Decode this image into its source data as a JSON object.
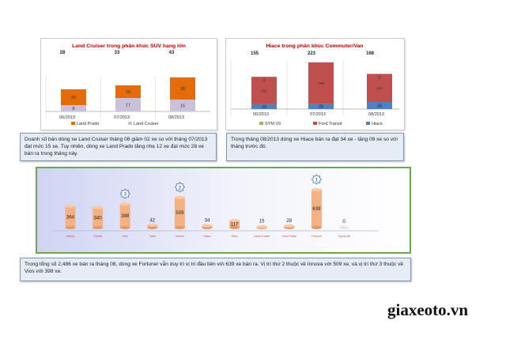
{
  "notes": {
    "suv": "Doanh số bán dòng xe Land Cruiser tháng 08 giảm 02 xe so với tháng 07/2013 đạt mức 15 xe. Tuy nhiên, dòng xe Land Prado tăng nhẹ 12 xe đạt mức 28 xe bán ra trong tháng này.",
    "hiace": "Trong tháng 08/2013 dòng xe Hiace bán ra đạt 34 xe - tăng 09 xe so với tháng trước đó.",
    "summary": "Trong tổng số 2,486 xe bán ra tháng 08, dòng xe Fortuner vẫn duy trì vị trí đầu tiên với 639 xe bán ra. Vị trí thứ 2 thuộc về Innova với 509 xe, và vị trí thứ 3 thuộc về Vios với 398 xe."
  },
  "brand": "giaxeoto.vn",
  "colors": {
    "land_prado": "#e46c0a",
    "land_cruiser": "#ccc1da",
    "ford_transit": "#c0504d",
    "hiace": "#4f81bd",
    "cylinder": "#f4b183",
    "title_red": "#c00000",
    "badge": "#4f81bd"
  },
  "chart_data": [
    {
      "type": "bar",
      "stacked": true,
      "title": "Land Cruiser trong phân khúc SUV hạng lớn",
      "categories": [
        "06/2013",
        "07/2013",
        "08/2013"
      ],
      "totals": [
        28,
        33,
        43
      ],
      "series": [
        {
          "name": "Land Prado",
          "values": [
            20,
            16,
            28
          ]
        },
        {
          "name": "Land Cruiser",
          "values": [
            8,
            17,
            15
          ]
        }
      ],
      "legend": "bottom",
      "grid": true
    },
    {
      "type": "bar",
      "stacked": true,
      "title": "Hiace trong phân khúc Commuter/Van",
      "categories": [
        "06/2013",
        "07/2013",
        "08/2013"
      ],
      "totals": [
        155,
        223,
        168
      ],
      "series": [
        {
          "name": "SYM V9",
          "values": [
            1,
            0,
            0
          ]
        },
        {
          "name": "Ford Transit",
          "values": [
            131,
            198,
            134
          ]
        },
        {
          "name": "Hiace",
          "values": [
            23,
            25,
            34
          ]
        }
      ],
      "segment_labels": [
        [
          "1",
          "131",
          "23"
        ],
        [
          "",
          "198",
          "25"
        ],
        [
          "0",
          "134",
          "34"
        ]
      ],
      "legend": "bottom",
      "grid": true
    },
    {
      "type": "bar",
      "shape": "cylinder",
      "categories": [
        "Camry",
        "Corolla",
        "Vios",
        "Yaris",
        "Innova",
        "Hiace",
        "Hilux",
        "Land Cruiser",
        "Land Prado",
        "Fortuner",
        "Toyota 86"
      ],
      "values": [
        364,
        340,
        398,
        42,
        509,
        34,
        117,
        15,
        28,
        639,
        0
      ],
      "ranks": [
        {
          "category": "Fortuner",
          "rank": "1"
        },
        {
          "category": "Innova",
          "rank": "2"
        },
        {
          "category": "Vios",
          "rank": "3"
        }
      ]
    }
  ]
}
